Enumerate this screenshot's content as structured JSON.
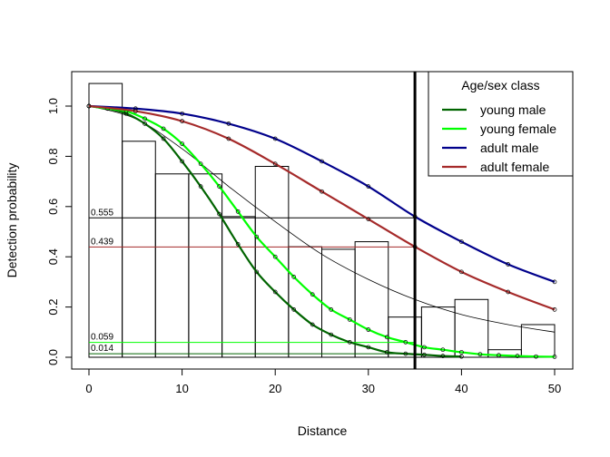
{
  "chart_data": {
    "type": "line",
    "xlabel": "Distance",
    "ylabel": "Detection probability",
    "xlim": [
      0,
      50
    ],
    "ylim": [
      0,
      1.1
    ],
    "x_ticks": [
      "0",
      "10",
      "20",
      "30",
      "40",
      "50"
    ],
    "y_ticks": [
      "0.0",
      "0.2",
      "0.4",
      "0.6",
      "0.8",
      "1.0"
    ],
    "histogram": {
      "bin_edges": [
        0,
        3.57,
        7.14,
        10.71,
        14.29,
        17.86,
        21.43,
        25,
        28.57,
        32.14,
        35.71,
        39.29,
        42.86,
        46.43,
        50
      ],
      "heights": [
        1.09,
        0.86,
        0.73,
        0.73,
        0.56,
        0.76,
        0.44,
        0.43,
        0.46,
        0.16,
        0.2,
        0.23,
        0.03,
        0.13
      ]
    },
    "overall_curve": {
      "x": [
        0,
        5,
        10,
        15,
        20,
        25,
        30,
        35,
        40,
        45,
        50
      ],
      "y": [
        1.0,
        0.95,
        0.83,
        0.68,
        0.54,
        0.41,
        0.31,
        0.23,
        0.17,
        0.13,
        0.1
      ]
    },
    "cutoff_x": 35,
    "reference_lines": [
      {
        "value": 0.555,
        "label": "0.555",
        "color": "#000000"
      },
      {
        "value": 0.439,
        "label": "0.439",
        "color": "#A52A2A"
      },
      {
        "value": 0.059,
        "label": "0.059",
        "color": "#00FF00"
      },
      {
        "value": 0.014,
        "label": "0.014",
        "color": "#006400"
      }
    ],
    "legend": {
      "title": "Age/sex class",
      "position": "top-right"
    },
    "series": [
      {
        "name": "young male",
        "color": "#006400",
        "x": [
          0,
          2,
          4,
          6,
          8,
          10,
          12,
          14,
          16,
          18,
          20,
          22,
          24,
          26,
          28,
          30,
          32,
          34,
          36,
          38,
          40
        ],
        "y": [
          1.0,
          0.99,
          0.97,
          0.93,
          0.87,
          0.78,
          0.68,
          0.57,
          0.45,
          0.34,
          0.26,
          0.19,
          0.13,
          0.09,
          0.06,
          0.04,
          0.02,
          0.014,
          0.01,
          0.005,
          0.003
        ]
      },
      {
        "name": "young female",
        "color": "#00FF00",
        "x": [
          0,
          2,
          4,
          6,
          8,
          10,
          12,
          14,
          16,
          18,
          20,
          22,
          24,
          26,
          28,
          30,
          32,
          34,
          36,
          38,
          40,
          42,
          44,
          46,
          48,
          50
        ],
        "y": [
          1.0,
          0.99,
          0.98,
          0.95,
          0.91,
          0.85,
          0.77,
          0.68,
          0.58,
          0.48,
          0.4,
          0.32,
          0.25,
          0.19,
          0.15,
          0.11,
          0.08,
          0.06,
          0.04,
          0.03,
          0.02,
          0.012,
          0.008,
          0.005,
          0.003,
          0.002
        ]
      },
      {
        "name": "adult male",
        "color": "#00008B",
        "x": [
          0,
          5,
          10,
          15,
          20,
          25,
          30,
          35,
          40,
          45,
          50
        ],
        "y": [
          1.0,
          0.99,
          0.97,
          0.93,
          0.87,
          0.78,
          0.68,
          0.56,
          0.46,
          0.37,
          0.3
        ]
      },
      {
        "name": "adult female",
        "color": "#A52A2A",
        "x": [
          0,
          5,
          10,
          15,
          20,
          25,
          30,
          35,
          40,
          45,
          50
        ],
        "y": [
          1.0,
          0.98,
          0.94,
          0.87,
          0.77,
          0.66,
          0.55,
          0.44,
          0.34,
          0.26,
          0.19
        ]
      }
    ]
  }
}
